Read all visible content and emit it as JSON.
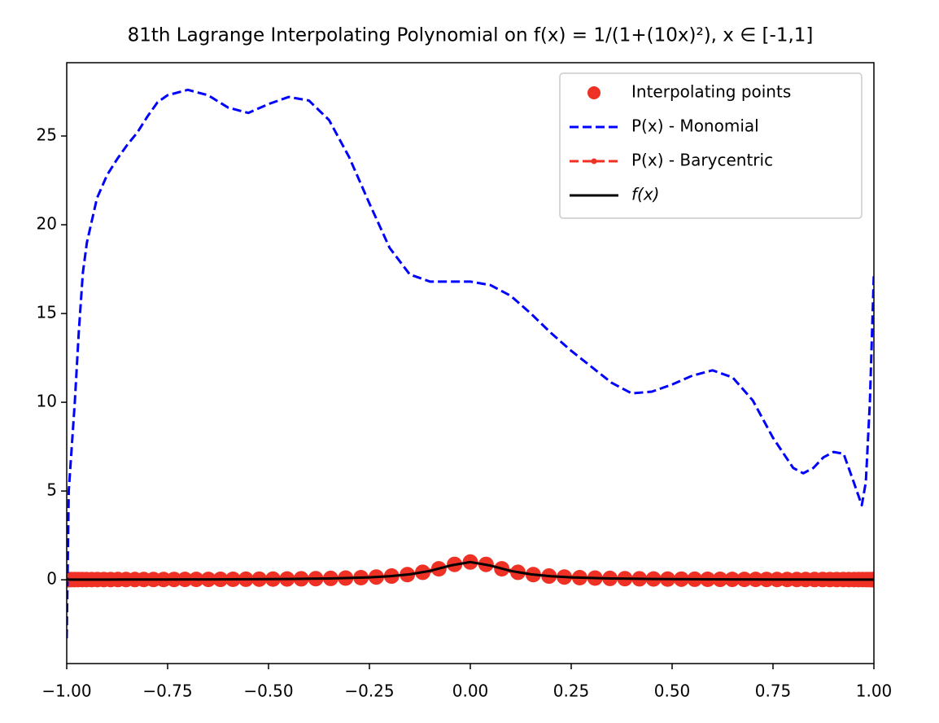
{
  "chart_data": {
    "type": "line",
    "title": "81th Lagrange Interpolating Polynomial on f(x) = 1/(1+(10x)²), x ∈ [-1,1]",
    "xlim": [
      -1,
      1
    ],
    "ylim": [
      -4.72,
      29.13
    ],
    "xticks": [
      {
        "value": -1,
        "label": "−1.00"
      },
      {
        "value": -0.75,
        "label": "−0.75"
      },
      {
        "value": -0.5,
        "label": "−0.50"
      },
      {
        "value": -0.25,
        "label": "−0.25"
      },
      {
        "value": 0,
        "label": "0.00"
      },
      {
        "value": 0.25,
        "label": "0.25"
      },
      {
        "value": 0.5,
        "label": "0.50"
      },
      {
        "value": 0.75,
        "label": "0.75"
      },
      {
        "value": 1,
        "label": "1.00"
      }
    ],
    "yticks": [
      0,
      5,
      10,
      15,
      20,
      25
    ],
    "legend": "upper right",
    "series": [
      {
        "name": "Interpolating points",
        "color": "#ee3124",
        "linestyle": "none",
        "marker": "o",
        "x": [
          -1,
          -0.999,
          -0.997,
          -0.993,
          -0.988,
          -0.981,
          -0.972,
          -0.962,
          -0.951,
          -0.938,
          -0.924,
          -0.908,
          -0.891,
          -0.873,
          -0.853,
          -0.831,
          -0.809,
          -0.785,
          -0.76,
          -0.734,
          -0.707,
          -0.679,
          -0.649,
          -0.619,
          -0.588,
          -0.556,
          -0.523,
          -0.489,
          -0.454,
          -0.419,
          -0.383,
          -0.346,
          -0.309,
          -0.271,
          -0.233,
          -0.195,
          -0.156,
          -0.118,
          -0.078,
          -0.039,
          0,
          0.039,
          0.078,
          0.118,
          0.156,
          0.195,
          0.233,
          0.271,
          0.309,
          0.346,
          0.383,
          0.419,
          0.454,
          0.489,
          0.523,
          0.556,
          0.588,
          0.619,
          0.649,
          0.679,
          0.707,
          0.734,
          0.76,
          0.785,
          0.809,
          0.831,
          0.853,
          0.873,
          0.891,
          0.908,
          0.924,
          0.938,
          0.951,
          0.962,
          0.972,
          0.981,
          0.988,
          0.993,
          0.997,
          0.999,
          1
        ],
        "values": [
          0.01,
          0.01,
          0.01,
          0.01,
          0.01,
          0.01,
          0.011,
          0.011,
          0.011,
          0.011,
          0.012,
          0.012,
          0.012,
          0.013,
          0.014,
          0.014,
          0.015,
          0.016,
          0.017,
          0.018,
          0.02,
          0.021,
          0.023,
          0.025,
          0.028,
          0.031,
          0.035,
          0.04,
          0.046,
          0.054,
          0.064,
          0.077,
          0.095,
          0.12,
          0.155,
          0.208,
          0.29,
          0.42,
          0.619,
          0.867,
          1,
          0.867,
          0.619,
          0.42,
          0.29,
          0.208,
          0.155,
          0.12,
          0.095,
          0.077,
          0.064,
          0.054,
          0.046,
          0.04,
          0.035,
          0.031,
          0.028,
          0.025,
          0.023,
          0.021,
          0.02,
          0.018,
          0.017,
          0.016,
          0.015,
          0.014,
          0.014,
          0.013,
          0.012,
          0.012,
          0.012,
          0.011,
          0.011,
          0.011,
          0.011,
          0.01,
          0.01,
          0.01,
          0.01,
          0.01,
          0.01
        ]
      },
      {
        "name": "P(x) - Monomial",
        "color": "#0000ff",
        "linestyle": "--",
        "x": [
          -1,
          -0.995,
          -0.98,
          -0.97,
          -0.96,
          -0.95,
          -0.925,
          -0.9,
          -0.875,
          -0.85,
          -0.825,
          -0.8,
          -0.775,
          -0.75,
          -0.7,
          -0.65,
          -0.6,
          -0.55,
          -0.5,
          -0.45,
          -0.4,
          -0.35,
          -0.3,
          -0.25,
          -0.2,
          -0.15,
          -0.1,
          -0.05,
          0,
          0.05,
          0.1,
          0.15,
          0.2,
          0.25,
          0.3,
          0.35,
          0.4,
          0.45,
          0.5,
          0.55,
          0.6,
          0.65,
          0.7,
          0.75,
          0.8,
          0.825,
          0.85,
          0.875,
          0.9,
          0.925,
          0.95,
          0.97,
          0.98,
          0.99,
          1
        ],
        "values": [
          -3.3,
          5,
          10,
          14,
          17.3,
          19,
          21.5,
          22.8,
          23.7,
          24.5,
          25.2,
          26.1,
          26.9,
          27.3,
          27.6,
          27.3,
          26.6,
          26.3,
          26.8,
          27.2,
          27,
          25.9,
          23.8,
          21.2,
          18.7,
          17.2,
          16.8,
          16.8,
          16.8,
          16.6,
          16,
          15,
          13.9,
          12.9,
          12,
          11.1,
          10.5,
          10.6,
          11,
          11.5,
          11.8,
          11.4,
          10.1,
          8,
          6.3,
          6,
          6.3,
          6.9,
          7.2,
          7.1,
          5.5,
          4.2,
          5.5,
          10,
          17.3
        ]
      },
      {
        "name": "P(x) - Barycentric",
        "color": "#ee3124",
        "linestyle": "--",
        "marker": ".",
        "x": [
          -1,
          -0.95,
          -0.9,
          -0.85,
          -0.8,
          -0.75,
          -0.7,
          -0.65,
          -0.6,
          -0.55,
          -0.5,
          -0.45,
          -0.4,
          -0.35,
          -0.3,
          -0.25,
          -0.2,
          -0.15,
          -0.1,
          -0.05,
          0,
          0.05,
          0.1,
          0.15,
          0.2,
          0.25,
          0.3,
          0.35,
          0.4,
          0.45,
          0.5,
          0.55,
          0.6,
          0.65,
          0.7,
          0.75,
          0.8,
          0.85,
          0.9,
          0.95,
          1
        ],
        "values": [
          0.01,
          0.011,
          0.012,
          0.014,
          0.015,
          0.017,
          0.02,
          0.023,
          0.027,
          0.032,
          0.038,
          0.047,
          0.059,
          0.075,
          0.1,
          0.138,
          0.2,
          0.308,
          0.5,
          0.8,
          1,
          0.8,
          0.5,
          0.308,
          0.2,
          0.138,
          0.1,
          0.075,
          0.059,
          0.047,
          0.038,
          0.032,
          0.027,
          0.023,
          0.02,
          0.017,
          0.015,
          0.014,
          0.012,
          0.011,
          0.01
        ]
      },
      {
        "name": "f(x)",
        "color": "#000000",
        "linestyle": "-",
        "x": [
          -1,
          -0.95,
          -0.9,
          -0.85,
          -0.8,
          -0.75,
          -0.7,
          -0.65,
          -0.6,
          -0.55,
          -0.5,
          -0.45,
          -0.4,
          -0.35,
          -0.3,
          -0.25,
          -0.2,
          -0.15,
          -0.1,
          -0.05,
          0,
          0.05,
          0.1,
          0.15,
          0.2,
          0.25,
          0.3,
          0.35,
          0.4,
          0.45,
          0.5,
          0.55,
          0.6,
          0.65,
          0.7,
          0.75,
          0.8,
          0.85,
          0.9,
          0.95,
          1
        ],
        "values": [
          0.01,
          0.011,
          0.012,
          0.014,
          0.015,
          0.017,
          0.02,
          0.023,
          0.027,
          0.032,
          0.038,
          0.047,
          0.059,
          0.075,
          0.1,
          0.138,
          0.2,
          0.308,
          0.5,
          0.8,
          1,
          0.8,
          0.5,
          0.308,
          0.2,
          0.138,
          0.1,
          0.075,
          0.059,
          0.047,
          0.038,
          0.032,
          0.027,
          0.023,
          0.02,
          0.017,
          0.015,
          0.014,
          0.012,
          0.011,
          0.01
        ]
      }
    ]
  }
}
